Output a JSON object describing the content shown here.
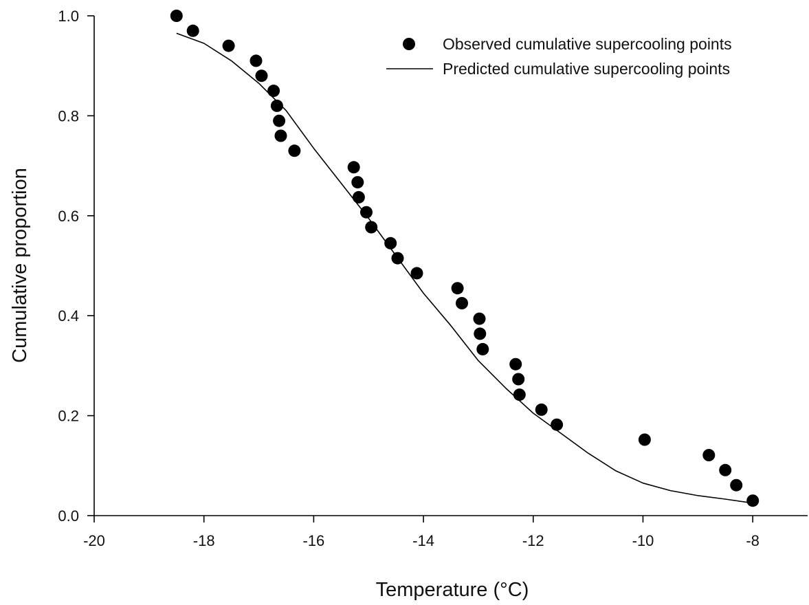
{
  "chart_data": {
    "type": "scatter",
    "title": "",
    "xlabel": "Temperature (°C)",
    "ylabel": "Cumulative proportion",
    "xlim": [
      -20,
      -7
    ],
    "ylim": [
      0,
      1.0
    ],
    "xticks": [
      -20,
      -18,
      -16,
      -14,
      -12,
      -10,
      -8
    ],
    "yticks": [
      0,
      0.2,
      0.4,
      0.6,
      0.8,
      1.0
    ],
    "xtick_labels": [
      "-20",
      "-18",
      "-16",
      "-14",
      "-12",
      "-10",
      "-8"
    ],
    "ytick_labels": [
      "0.0",
      "0.2",
      "0.4",
      "0.6",
      "0.8",
      "1.0"
    ],
    "grid": false,
    "legend_position": "top-right",
    "series": [
      {
        "name": "Observed cumulative supercooling points",
        "kind": "scatter",
        "color": "#000000",
        "points": [
          [
            -18.5,
            1.0
          ],
          [
            -18.2,
            0.97
          ],
          [
            -17.55,
            0.94
          ],
          [
            -17.05,
            0.91
          ],
          [
            -16.95,
            0.88
          ],
          [
            -16.73,
            0.85
          ],
          [
            -16.67,
            0.82
          ],
          [
            -16.63,
            0.79
          ],
          [
            -16.6,
            0.76
          ],
          [
            -16.35,
            0.73
          ],
          [
            -15.27,
            0.697
          ],
          [
            -15.2,
            0.667
          ],
          [
            -15.18,
            0.637
          ],
          [
            -15.04,
            0.607
          ],
          [
            -14.95,
            0.577
          ],
          [
            -14.6,
            0.545
          ],
          [
            -14.47,
            0.515
          ],
          [
            -14.12,
            0.485
          ],
          [
            -13.38,
            0.455
          ],
          [
            -13.3,
            0.425
          ],
          [
            -12.98,
            0.394
          ],
          [
            -12.97,
            0.364
          ],
          [
            -12.92,
            0.333
          ],
          [
            -12.32,
            0.303
          ],
          [
            -12.27,
            0.273
          ],
          [
            -12.25,
            0.242
          ],
          [
            -11.85,
            0.212
          ],
          [
            -11.57,
            0.182
          ],
          [
            -9.97,
            0.152
          ],
          [
            -8.8,
            0.121
          ],
          [
            -8.5,
            0.091
          ],
          [
            -8.3,
            0.061
          ],
          [
            -8.0,
            0.03
          ]
        ]
      },
      {
        "name": "Predicted cumulative supercooling points",
        "kind": "line",
        "color": "#000000",
        "points": [
          [
            -18.5,
            0.965
          ],
          [
            -18.0,
            0.945
          ],
          [
            -17.5,
            0.91
          ],
          [
            -17.0,
            0.865
          ],
          [
            -16.5,
            0.81
          ],
          [
            -16.0,
            0.735
          ],
          [
            -15.5,
            0.665
          ],
          [
            -15.0,
            0.595
          ],
          [
            -14.5,
            0.52
          ],
          [
            -14.0,
            0.445
          ],
          [
            -13.5,
            0.38
          ],
          [
            -13.0,
            0.31
          ],
          [
            -12.5,
            0.255
          ],
          [
            -12.0,
            0.205
          ],
          [
            -11.5,
            0.165
          ],
          [
            -11.0,
            0.125
          ],
          [
            -10.5,
            0.09
          ],
          [
            -10.0,
            0.065
          ],
          [
            -9.5,
            0.05
          ],
          [
            -9.0,
            0.04
          ],
          [
            -8.5,
            0.033
          ],
          [
            -8.0,
            0.025
          ]
        ]
      }
    ]
  }
}
